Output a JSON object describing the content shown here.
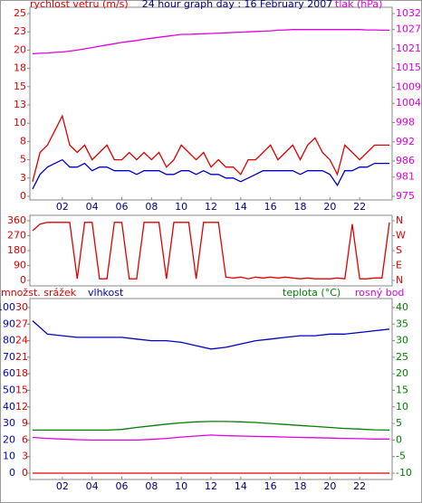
{
  "chart_data": [
    {
      "type": "line",
      "title": "24 hour graph day : 16 February 2007",
      "y_label": "rychlost vetru (m/s)",
      "y_color": "#e00000",
      "y2_label": "tlak (hPa)",
      "y2_color": "#e000e0",
      "x": [
        0,
        0.5,
        1,
        1.5,
        2,
        2.5,
        3,
        3.5,
        4,
        4.5,
        5,
        5.5,
        6,
        6.5,
        7,
        7.5,
        8,
        8.5,
        9,
        9.5,
        10,
        10.5,
        11,
        11.5,
        12,
        12.5,
        13,
        13.5,
        14,
        14.5,
        15,
        15.5,
        16,
        16.5,
        17,
        17.5,
        18,
        18.5,
        19,
        19.5,
        20,
        20.5,
        21,
        21.5,
        22,
        22.5,
        23,
        23.5,
        24
      ],
      "xlim": [
        0,
        24
      ],
      "xticks": [
        {
          "value": 2,
          "label": "02"
        },
        {
          "value": 4,
          "label": "04"
        },
        {
          "value": 6,
          "label": "06"
        },
        {
          "value": 8,
          "label": "08"
        },
        10,
        12,
        14,
        16,
        18,
        20,
        22
      ],
      "ylim": [
        0,
        25
      ],
      "yticks": [
        0,
        {
          "value": 2.5,
          "label": "3"
        },
        5,
        {
          "value": 7.5,
          "label": "8"
        },
        10,
        {
          "value": 12.5,
          "label": "13"
        },
        15,
        {
          "value": 17.5,
          "label": "18"
        },
        20,
        {
          "value": 22.5,
          "label": "23"
        },
        25
      ],
      "y2lim": [
        975,
        1032
      ],
      "y2ticks": [
        975,
        981,
        986,
        992,
        998,
        1004,
        1009,
        1015,
        1021,
        1027,
        1032
      ],
      "series": [
        {
          "color": "#e00000",
          "values": [
            2,
            6,
            7,
            9,
            11,
            7,
            6,
            7,
            5,
            6,
            7,
            5,
            5,
            6,
            5,
            6,
            5,
            6,
            4,
            5,
            7,
            6,
            5,
            6,
            4,
            5,
            4,
            4,
            3,
            5,
            5,
            6,
            7,
            5,
            6,
            7,
            5,
            7,
            8,
            6,
            5,
            3,
            7,
            6,
            5,
            6,
            7,
            7,
            7
          ]
        },
        {
          "color": "#0000c0",
          "values": [
            1,
            3,
            4,
            4.5,
            5,
            4,
            4,
            4.5,
            3.5,
            4,
            4,
            3.5,
            3.5,
            3.5,
            3,
            3.5,
            3.5,
            3.5,
            3,
            3,
            3.5,
            3.5,
            3,
            3.5,
            3,
            3,
            2.5,
            2.5,
            2,
            2.5,
            3,
            3.5,
            3.5,
            3.5,
            3.5,
            3.5,
            3,
            3.5,
            3.5,
            3.5,
            3,
            1.5,
            3.5,
            3.5,
            4,
            4,
            4.5,
            4.5,
            4.5
          ]
        },
        {
          "color": "#e000e0",
          "axis": "y2",
          "values": [
            1019.5,
            1019.6,
            1019.7,
            1019.9,
            1020,
            1020.3,
            1020.6,
            1021,
            1021.4,
            1021.8,
            1022.2,
            1022.6,
            1023,
            1023.3,
            1023.6,
            1024,
            1024.3,
            1024.6,
            1024.9,
            1025.2,
            1025.5,
            1025.5,
            1025.6,
            1025.7,
            1025.8,
            1025.9,
            1026,
            1026.1,
            1026.2,
            1026.3,
            1026.4,
            1026.5,
            1026.6,
            1026.8,
            1026.9,
            1027,
            1027,
            1027,
            1027,
            1027,
            1027,
            1027,
            1027,
            1027,
            1027,
            1026.9,
            1026.9,
            1026.8,
            1026.8
          ]
        }
      ]
    },
    {
      "type": "line",
      "y_color": "#e00000",
      "y2_color": "#e00000",
      "x": [
        0,
        0.5,
        1,
        1.5,
        2,
        2.5,
        3,
        3.5,
        4,
        4.5,
        5,
        5.5,
        6,
        6.5,
        7,
        7.5,
        8,
        8.5,
        9,
        9.5,
        10,
        10.5,
        11,
        11.5,
        12,
        12.5,
        13,
        13.5,
        14,
        14.5,
        15,
        15.5,
        16,
        16.5,
        17,
        17.5,
        18,
        18.5,
        19,
        19.5,
        20,
        20.5,
        21,
        21.5,
        22,
        22.5,
        23,
        23.5,
        24
      ],
      "xlim": [
        0,
        24
      ],
      "ylim": [
        0,
        360
      ],
      "yticks": [
        0,
        90,
        180,
        270,
        360
      ],
      "y2lim": [
        0,
        360
      ],
      "y2ticks": [
        {
          "value": 0,
          "label": "N"
        },
        {
          "value": 90,
          "label": "E"
        },
        {
          "value": 180,
          "label": "S"
        },
        {
          "value": 270,
          "label": "W"
        },
        {
          "value": 360,
          "label": "N"
        }
      ],
      "series": [
        {
          "color": "#e00000",
          "values": [
            300,
            340,
            350,
            350,
            350,
            350,
            10,
            350,
            350,
            10,
            10,
            350,
            350,
            10,
            10,
            350,
            350,
            350,
            10,
            350,
            350,
            350,
            10,
            350,
            350,
            350,
            20,
            15,
            20,
            10,
            20,
            15,
            20,
            15,
            20,
            15,
            10,
            15,
            10,
            10,
            10,
            15,
            10,
            340,
            10,
            10,
            15,
            15,
            350
          ]
        }
      ]
    },
    {
      "type": "line",
      "y_color": "#0000c0",
      "y2_color": "#008000",
      "y3_color": "#e00000",
      "x": [
        0,
        1,
        2,
        3,
        4,
        5,
        6,
        7,
        8,
        9,
        10,
        11,
        12,
        13,
        14,
        15,
        16,
        17,
        18,
        19,
        20,
        21,
        22,
        23,
        24
      ],
      "xlim": [
        0,
        24
      ],
      "xticks": [
        {
          "value": 2,
          "label": "02"
        },
        {
          "value": 4,
          "label": "04"
        },
        {
          "value": 6,
          "label": "06"
        },
        {
          "value": 8,
          "label": "08"
        },
        10,
        12,
        14,
        16,
        18,
        20,
        22
      ],
      "ylim": [
        0,
        100
      ],
      "yticks": [
        0,
        10,
        20,
        30,
        40,
        50,
        60,
        70,
        80,
        90,
        100
      ],
      "y2lim": [
        -10,
        40
      ],
      "y2ticks": [
        -10,
        -5,
        0,
        5,
        10,
        15,
        20,
        25,
        30,
        35,
        40
      ],
      "y3lim": [
        0,
        30
      ],
      "y3ticks": [
        0,
        3,
        6,
        9,
        12,
        15,
        18,
        21,
        24,
        27,
        30
      ],
      "series": [
        {
          "name": "množst. srážek",
          "color": "#e00000",
          "axis": "y3",
          "values": [
            0,
            0,
            0,
            0,
            0,
            0,
            0,
            0,
            0,
            0,
            0,
            0,
            0,
            0,
            0,
            0,
            0,
            0,
            0,
            0,
            0,
            0,
            0,
            0,
            0
          ]
        },
        {
          "name": "vlhkost",
          "color": "#0000c0",
          "values": [
            92,
            84,
            83,
            82,
            82,
            82,
            82,
            81,
            80,
            80,
            79,
            77,
            75,
            76,
            78,
            80,
            81,
            82,
            83,
            83,
            84,
            84,
            85,
            86,
            87
          ]
        },
        {
          "name": "teplota (°C)",
          "color": "#008000",
          "axis": "y2",
          "values": [
            3,
            3,
            3,
            3,
            3,
            3,
            3.2,
            3.8,
            4.3,
            4.8,
            5.2,
            5.5,
            5.6,
            5.6,
            5.5,
            5.3,
            5,
            4.7,
            4.4,
            4.1,
            3.8,
            3.5,
            3.3,
            3.1,
            3
          ]
        },
        {
          "name": "rosný bod",
          "color": "#e000e0",
          "axis": "y2",
          "values": [
            0.8,
            0.5,
            0.3,
            0.1,
            0,
            0,
            0,
            0,
            0.2,
            0.5,
            0.9,
            1.2,
            1.5,
            1.3,
            1.2,
            1.1,
            1,
            0.9,
            0.8,
            0.7,
            0.6,
            0.5,
            0.4,
            0.3,
            0.3
          ]
        }
      ]
    }
  ]
}
